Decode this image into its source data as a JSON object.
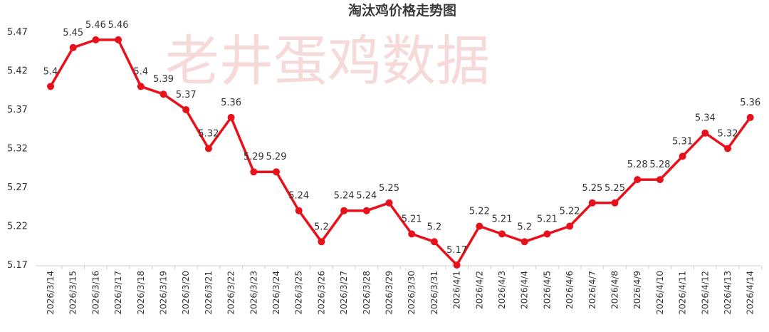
{
  "watermark": "老井蛋鸡数据",
  "colors": {
    "line": "#e8111b",
    "text": "#333333",
    "axis": "#d0d0d0"
  },
  "chart_data": {
    "type": "line",
    "title": "淘汰鸡价格走势图",
    "xlabel": "",
    "ylabel": "",
    "ylim": [
      5.17,
      5.47
    ],
    "yticks": [
      "5.17",
      "5.22",
      "5.27",
      "5.32",
      "5.37",
      "5.42",
      "5.47"
    ],
    "grid": false,
    "categories": [
      "2026/3/14",
      "2026/3/15",
      "2026/3/16",
      "2026/3/17",
      "2026/3/18",
      "2026/3/19",
      "2026/3/20",
      "2026/3/21",
      "2026/3/22",
      "2026/3/23",
      "2026/3/24",
      "2026/3/25",
      "2026/3/26",
      "2026/3/27",
      "2026/3/28",
      "2026/3/29",
      "2026/3/30",
      "2026/3/31",
      "2026/4/1",
      "2026/4/2",
      "2026/4/3",
      "2026/4/4",
      "2026/4/5",
      "2026/4/6",
      "2026/4/7",
      "2026/4/8",
      "2026/4/9",
      "2026/4/10",
      "2026/4/11",
      "2026/4/12",
      "2026/4/13",
      "2026/4/14"
    ],
    "series": [
      {
        "name": "淘汰鸡价格",
        "values": [
          5.4,
          5.45,
          5.46,
          5.46,
          5.4,
          5.39,
          5.37,
          5.32,
          5.36,
          5.29,
          5.29,
          5.24,
          5.2,
          5.24,
          5.24,
          5.25,
          5.21,
          5.2,
          5.17,
          5.22,
          5.21,
          5.2,
          5.21,
          5.22,
          5.25,
          5.25,
          5.28,
          5.28,
          5.31,
          5.34,
          5.32,
          5.36
        ],
        "labels": [
          "5.4",
          "5.45",
          "5.46",
          "5.46",
          "5.4",
          "5.39",
          "5.37",
          "5.32",
          "5.36",
          "5.29",
          "5.29",
          "5.24",
          "5.2",
          "5.24",
          "5.24",
          "5.25",
          "5.21",
          "5.2",
          "5.17",
          "5.22",
          "5.21",
          "5.2",
          "5.21",
          "5.22",
          "5.25",
          "5.25",
          "5.28",
          "5.28",
          "5.31",
          "5.34",
          "5.32",
          "5.36"
        ]
      }
    ]
  }
}
